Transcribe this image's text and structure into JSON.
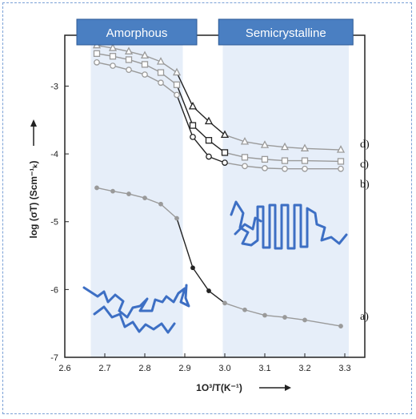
{
  "chart_data": {
    "type": "line",
    "xlabel": "1O³/T(K⁻¹)",
    "ylabel": "log (σT) (Scm⁻¹ₖ)",
    "xlim": [
      2.6,
      3.35
    ],
    "ylim": [
      -7,
      -2.25
    ],
    "xticks": [
      2.6,
      2.7,
      2.8,
      2.9,
      3.0,
      3.1,
      3.2,
      3.3
    ],
    "xtick_labels": [
      "2.6",
      "2.7",
      "2.8",
      "2.9",
      "3.0",
      "3.1",
      "3.2",
      "3.3"
    ],
    "yticks": [
      -3,
      -4,
      -5,
      -6,
      -7
    ],
    "ytick_labels": [
      "-3",
      "-4",
      "-5",
      "-6",
      "-7"
    ],
    "grid": false,
    "regions": [
      {
        "label": "Amorphous",
        "x_range": [
          2.665,
          2.895
        ]
      },
      {
        "label": "Semicrystalline",
        "x_range": [
          2.995,
          3.31
        ]
      }
    ],
    "series": [
      {
        "label": "d)",
        "marker": "triangle",
        "x": [
          2.68,
          2.72,
          2.76,
          2.8,
          2.84,
          2.88,
          2.92,
          2.96,
          3.0,
          3.05,
          3.1,
          3.15,
          3.2,
          3.29
        ],
        "y": [
          -2.4,
          -2.44,
          -2.49,
          -2.55,
          -2.64,
          -2.8,
          -3.3,
          -3.52,
          -3.72,
          -3.82,
          -3.87,
          -3.9,
          -3.92,
          -3.94
        ]
      },
      {
        "label": "c)",
        "marker": "square",
        "x": [
          2.68,
          2.72,
          2.76,
          2.8,
          2.84,
          2.88,
          2.92,
          2.96,
          3.0,
          3.05,
          3.1,
          3.15,
          3.2,
          3.29
        ],
        "y": [
          -2.52,
          -2.56,
          -2.61,
          -2.68,
          -2.8,
          -2.98,
          -3.58,
          -3.8,
          -3.98,
          -4.05,
          -4.08,
          -4.1,
          -4.1,
          -4.11
        ]
      },
      {
        "label": "b)",
        "marker": "circle",
        "x": [
          2.68,
          2.72,
          2.76,
          2.8,
          2.84,
          2.88,
          2.92,
          2.96,
          3.0,
          3.05,
          3.1,
          3.15,
          3.2,
          3.29
        ],
        "y": [
          -2.65,
          -2.7,
          -2.76,
          -2.83,
          -2.95,
          -3.13,
          -3.75,
          -4.04,
          -4.13,
          -4.18,
          -4.21,
          -4.22,
          -4.22,
          -4.22
        ]
      },
      {
        "label": "a)",
        "marker": "dot",
        "x": [
          2.68,
          2.72,
          2.76,
          2.8,
          2.84,
          2.88,
          2.92,
          2.96,
          3.0,
          3.05,
          3.1,
          3.15,
          3.2,
          3.29
        ],
        "y": [
          -4.5,
          -4.55,
          -4.59,
          -4.65,
          -4.74,
          -4.95,
          -5.68,
          -6.02,
          -6.2,
          -6.3,
          -6.38,
          -6.41,
          -6.45,
          -6.54
        ]
      }
    ],
    "colors": {
      "region_fill": "#e6eef9",
      "header_fill": "#4a7fc2",
      "header_border": "#2c5a96",
      "polymer": "#3d6fc4",
      "curve_light": "#9a9a9a",
      "curve_dark": "#222222"
    }
  }
}
